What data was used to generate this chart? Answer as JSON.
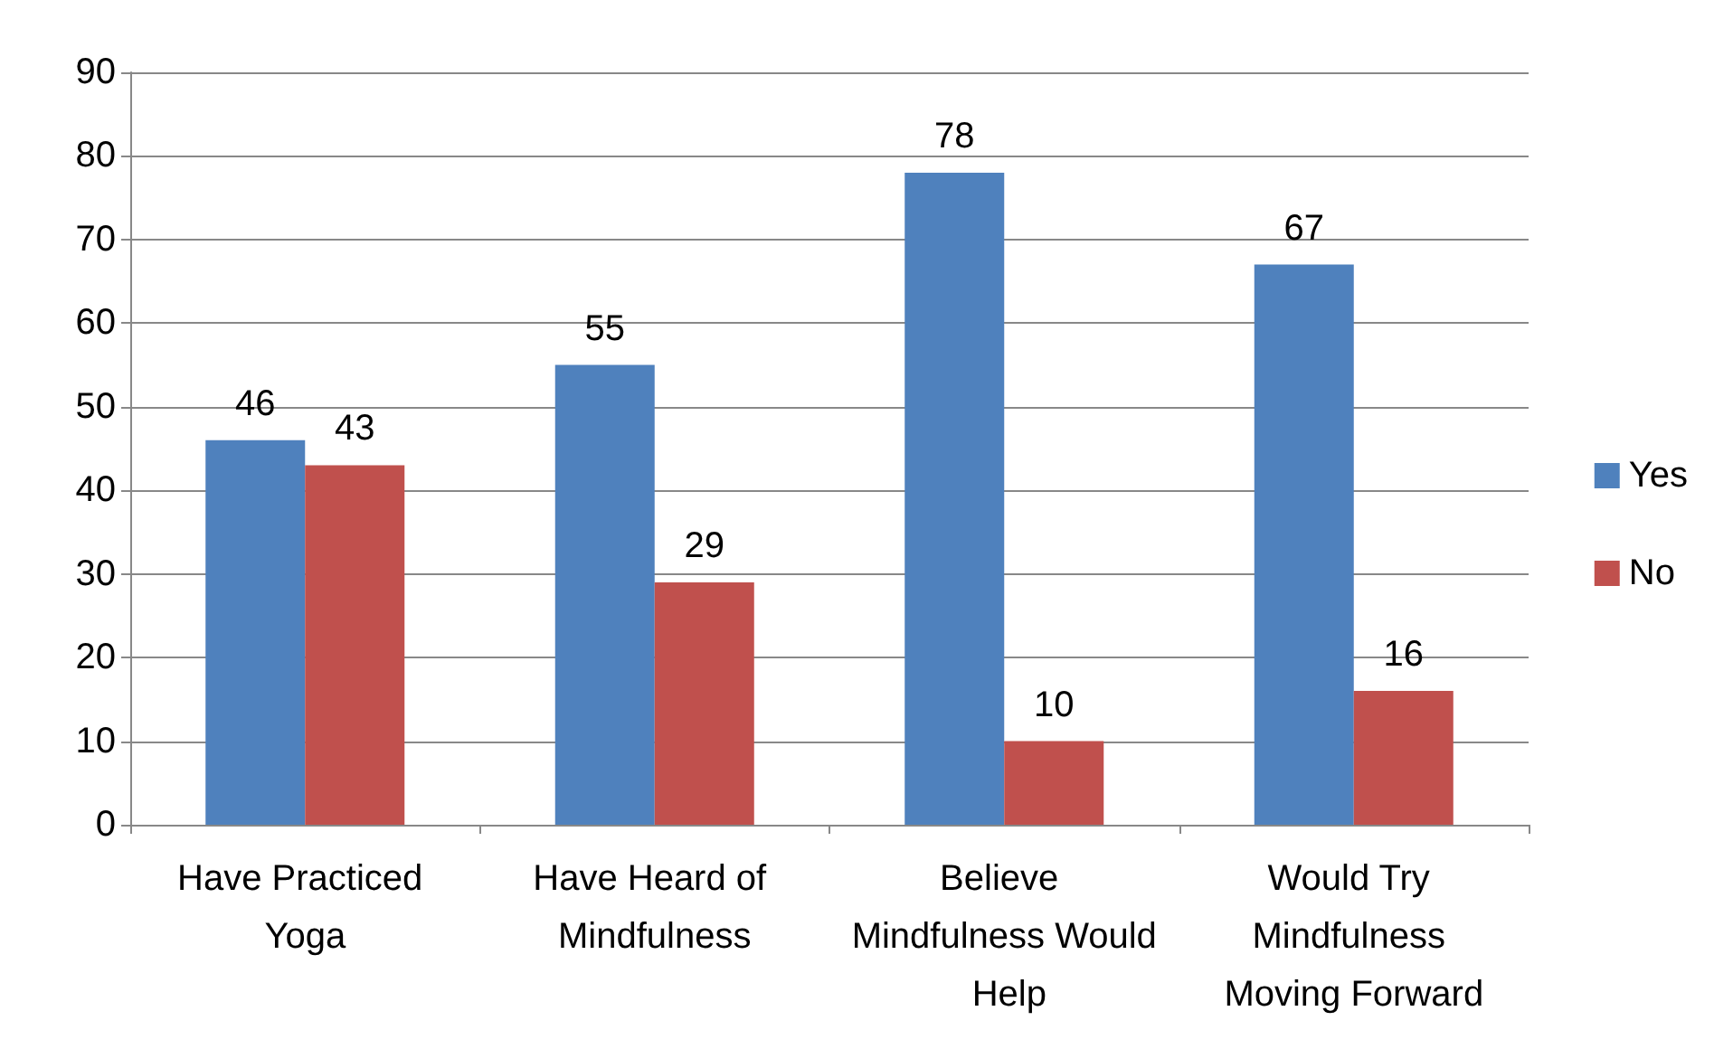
{
  "chart_data": {
    "type": "bar",
    "categories": [
      "Have Practiced Yoga",
      "Have Heard of Mindfulness",
      "Believe Mindfulness Would Help",
      "Would Try Mindfulness Moving Forward"
    ],
    "series": [
      {
        "name": "Yes",
        "color": "#4f81bd",
        "values": [
          46,
          55,
          78,
          67
        ]
      },
      {
        "name": "No",
        "color": "#c0504d",
        "values": [
          43,
          29,
          10,
          16
        ]
      }
    ],
    "ylim": [
      0,
      90
    ],
    "yticks": [
      0,
      10,
      20,
      30,
      40,
      50,
      60,
      70,
      80,
      90
    ],
    "grid": "y",
    "legend": "right",
    "data_labels": true
  }
}
